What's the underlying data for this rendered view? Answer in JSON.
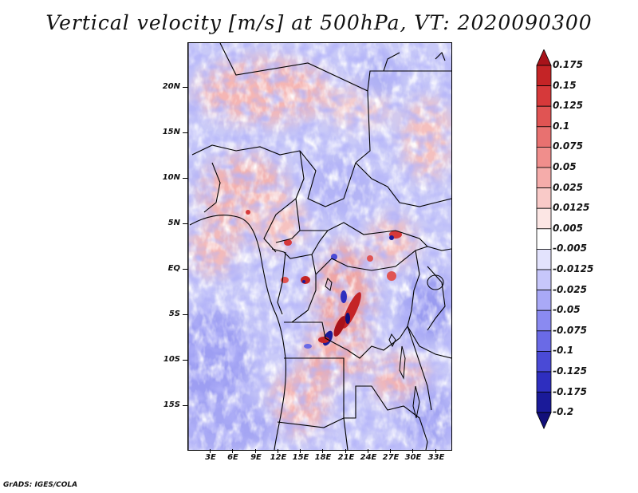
{
  "title": "Vertical velocity [m/s] at 500hPa, VT: 2020090300",
  "credit": "GrADS: IGES/COLA",
  "map": {
    "lat_labels": [
      "20N",
      "15N",
      "10N",
      "5N",
      "EQ",
      "5S",
      "10S",
      "15S"
    ],
    "lon_labels": [
      "3E",
      "6E",
      "9E",
      "12E",
      "15E",
      "18E",
      "21E",
      "24E",
      "27E",
      "30E",
      "33E"
    ]
  },
  "colorbar": {
    "labels": [
      "0.175",
      "0.15",
      "0.125",
      "0.1",
      "0.075",
      "0.05",
      "0.025",
      "0.0125",
      "0.005",
      "-0.005",
      "-0.0125",
      "-0.025",
      "-0.05",
      "-0.075",
      "-0.1",
      "-0.125",
      "-0.175",
      "-0.2"
    ],
    "colors": [
      "#a8131a",
      "#c42426",
      "#d6393a",
      "#e05453",
      "#e87170",
      "#f08e8c",
      "#f5acaa",
      "#f9cac8",
      "#fce6e4",
      "#ffffff",
      "#e3e3fd",
      "#c7c7fb",
      "#a9a9f7",
      "#8a8af1",
      "#6a6ae6",
      "#4a4ad6",
      "#2e2ebf",
      "#1a1a99",
      "#120f7a"
    ]
  }
}
